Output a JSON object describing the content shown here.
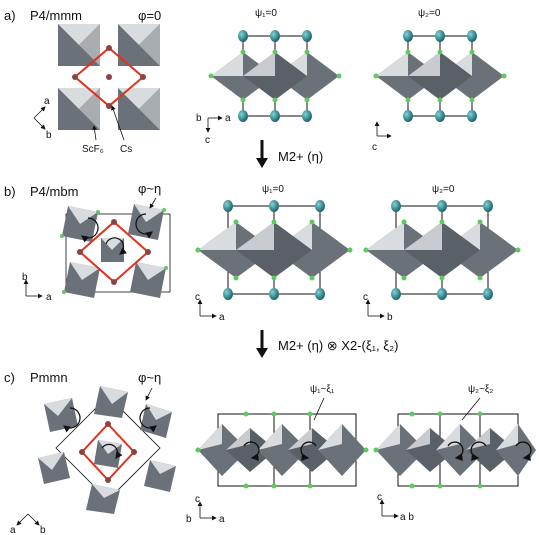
{
  "panels": {
    "a": {
      "letter": "a)",
      "group": "P4/mmm",
      "phi": "φ=0",
      "psi1": "ψ₁=0",
      "psi2": "ψ₂=0",
      "label_scf6": "ScF₆",
      "label_cs": "Cs",
      "axes_top": {
        "x": "a",
        "y": "b"
      },
      "axes_side": {
        "x": "a",
        "y": "c",
        "z": "b"
      }
    },
    "b": {
      "letter": "b)",
      "group": "P4/mbm",
      "phi": "φ~η",
      "psi1": "ψ₁=0",
      "psi2": "ψ₂=0",
      "axes_top": {
        "x": "a",
        "y": "b"
      },
      "axes_side1": {
        "x": "a",
        "y": "c"
      },
      "axes_side2": {
        "x": "b",
        "y": "c"
      }
    },
    "c": {
      "letter": "c)",
      "group": "Pmmn",
      "phi": "φ~η",
      "psi1": "ψ₁~ξ₁",
      "psi2": "ψ₂~ξ₂",
      "axes_top": {
        "x": "b",
        "y": "a"
      },
      "axes_side1": {
        "x": "a",
        "y": "c",
        "z": "b"
      },
      "axes_side2": {
        "x": "a b",
        "y": "c"
      }
    }
  },
  "transitions": {
    "first": "M2+ (η)",
    "second": "M2+ (η) ⊗ X2-(ξ₁, ξ₂)"
  },
  "colors": {
    "octahedron_light": "#d9dcdf",
    "octahedron_dark": "#6b7178",
    "cs_atom": "#1f7f86",
    "f_atom": "#5fc95f",
    "cell_red": "#e0321e"
  }
}
